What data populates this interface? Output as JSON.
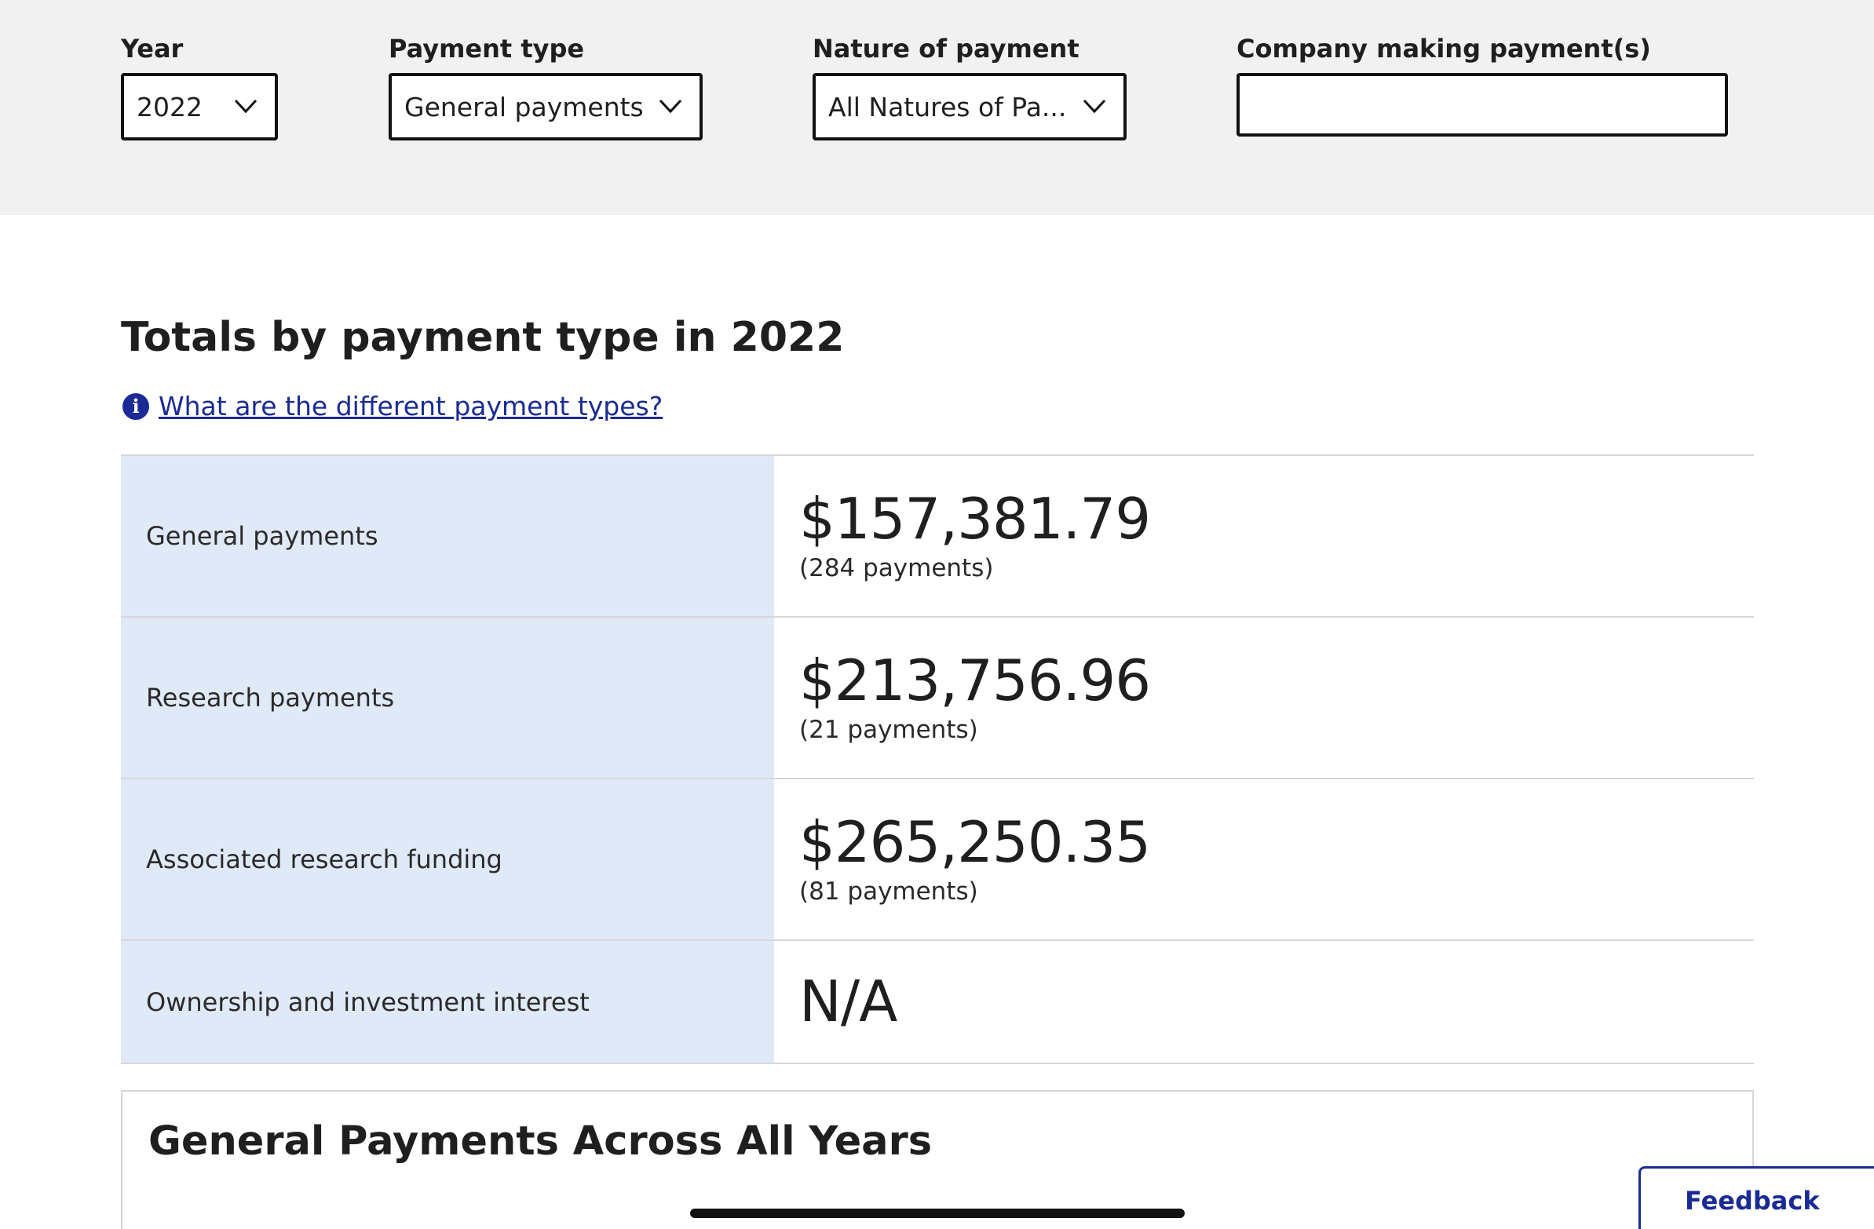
{
  "filters": {
    "year": {
      "label": "Year",
      "value": "2022"
    },
    "payment_type": {
      "label": "Payment type",
      "value": "General payments"
    },
    "nature": {
      "label": "Nature of payment",
      "value": "All Natures of Pa..."
    },
    "company": {
      "label": "Company making payment(s)",
      "value": ""
    }
  },
  "totals": {
    "title": "Totals by payment type in 2022",
    "info_link": "What are the different payment types?",
    "rows": [
      {
        "label": "General payments",
        "amount": "$157,381.79",
        "count": "(284 payments)"
      },
      {
        "label": "Research payments",
        "amount": "$213,756.96",
        "count": "(21 payments)"
      },
      {
        "label": "Associated research funding",
        "amount": "$265,250.35",
        "count": "(81 payments)"
      },
      {
        "label": "Ownership and investment interest",
        "amount": "N/A",
        "count": ""
      }
    ]
  },
  "chart_card": {
    "title": "General Payments Across All Years"
  },
  "feedback": {
    "label": "Feedback"
  },
  "colors": {
    "accent": "#1a2b95",
    "label_cell_bg": "#e0e9f7",
    "filter_bg": "#f1f1f1"
  },
  "icons": {
    "info": "info-icon",
    "chevron": "chevron-down-icon"
  }
}
